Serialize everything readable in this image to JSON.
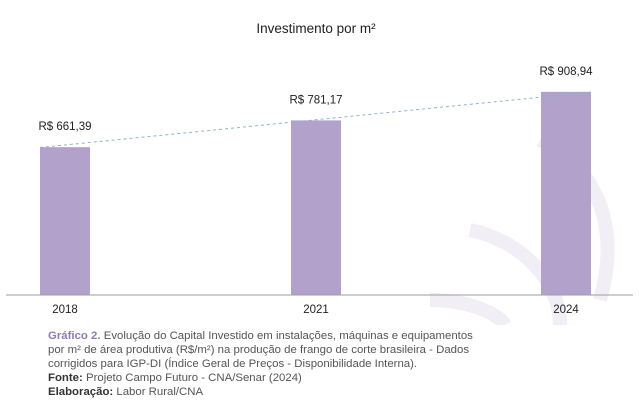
{
  "chart_data": {
    "type": "bar",
    "title": "Investimento por m²",
    "categories": [
      "2018",
      "2021",
      "2024"
    ],
    "values": [
      661.39,
      781.17,
      908.94
    ],
    "data_labels": [
      "R$ 661,39",
      "R$ 781,17",
      "R$ 908,94"
    ],
    "xlabel": "",
    "ylabel": "",
    "ylim": [
      0,
      1000
    ],
    "trendline": true,
    "grid": false,
    "legend": "none",
    "bar_color": "#b1a1cb",
    "trendline_color": "#8fb3cf",
    "axis_color": "#9e9e9e"
  },
  "caption": {
    "figure_label": "Gráfico 2.",
    "figure_text_line1": "Evolução do Capital Investido em instalações, máquinas e equipamentos",
    "figure_text_line2": "por m² de área produtiva (R$/m²) na produção de frango de corte brasileira - Dados",
    "figure_text_line3": "corrigidos para IGP-DI (Índice Geral de Preços - Disponibilidade Interna).",
    "source_label": "Fonte:",
    "source_text": "Projeto Campo Futuro - CNA/Senar (2024)",
    "elaboration_label": "Elaboração:",
    "elaboration_text": "Labor Rural/CNA"
  },
  "colors": {
    "watermark": "#f1eff5",
    "caption_accent": "#8f7bb0"
  }
}
